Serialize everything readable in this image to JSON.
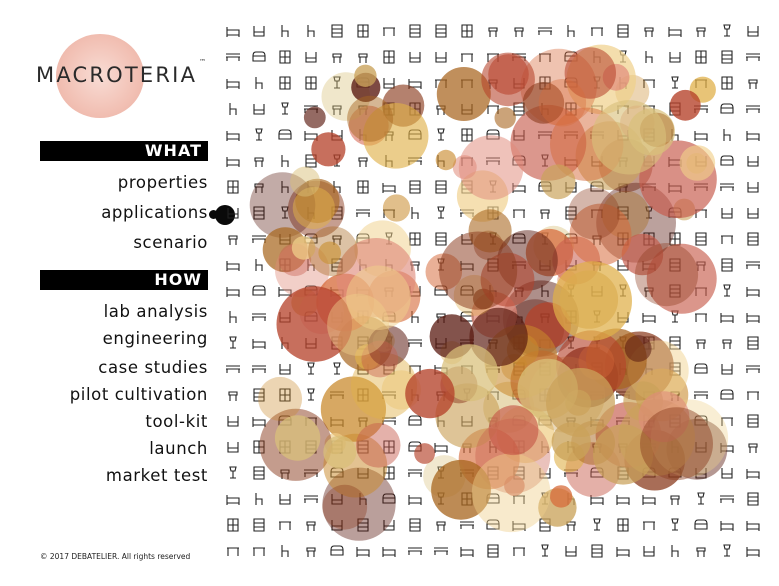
{
  "brand": {
    "name": "MACROTERIA",
    "trademark": "™"
  },
  "nav": {
    "what": {
      "heading": "WHAT",
      "items": [
        "properties",
        "applications",
        "scenario"
      ]
    },
    "how": {
      "heading": "HOW",
      "items": [
        "lab analysis",
        "engineering",
        "case studies",
        "pilot cultivation",
        "tool-kit",
        "launch",
        "market test"
      ]
    },
    "active_item": "applications"
  },
  "footer": {
    "copyright": "© 2017 DEBATELIER. All rights reserved"
  },
  "colors": {
    "bar_background": "#000000",
    "bar_text": "#ffffff",
    "logo_disc": "#f0b8aa",
    "circle_palette": [
      "#b5422a",
      "#d66a3a",
      "#c98a2c",
      "#e0b048",
      "#d9c07a",
      "#8a3a1c",
      "#5a1a10",
      "#e08a7a",
      "#caa25a",
      "#a8661f",
      "#f0d08a",
      "#c65a4a"
    ]
  },
  "artwork": {
    "icon_names": [
      "bed-icon",
      "sofa-icon",
      "chair-icon",
      "table-icon",
      "lamp-icon",
      "shelf-icon",
      "stool-icon",
      "cabinet-icon",
      "bench-icon",
      "armchair-icon"
    ]
  }
}
